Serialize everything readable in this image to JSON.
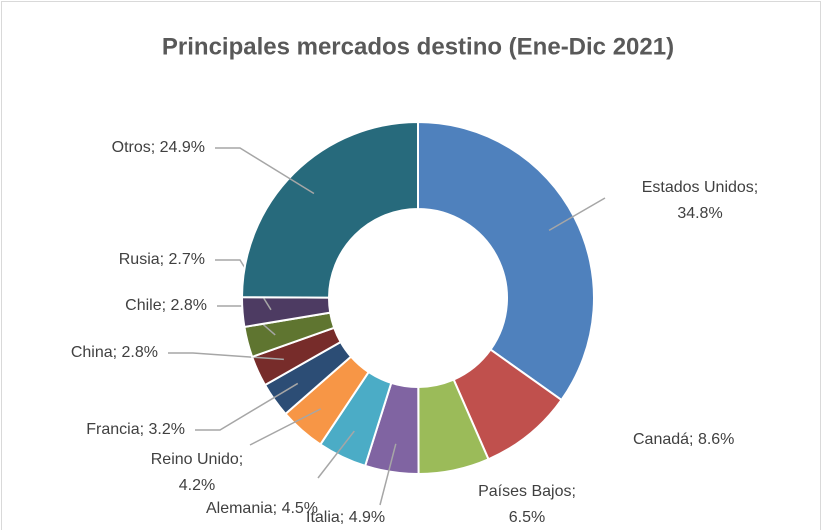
{
  "chart_data": {
    "type": "donut",
    "title": "Principales mercados destino (Ene-Dic 2021)",
    "values": [
      34.8,
      8.6,
      6.5,
      4.9,
      4.5,
      4.2,
      3.2,
      2.8,
      2.8,
      2.7,
      24.9
    ],
    "value_labels": [
      [
        "Estados Unidos;",
        "34.8%"
      ],
      [
        "Canadá; 8.6%"
      ],
      [
        "Países Bajos;",
        "6.5%"
      ],
      [
        "Italia; 4.9%"
      ],
      [
        "Alemania; 4.5%"
      ],
      [
        "Reino Unido;",
        "4.2%"
      ],
      [
        "Francia; 3.2%"
      ],
      [
        "China; 2.8%"
      ],
      [
        "Chile; 2.8%"
      ],
      [
        "Rusia; 2.7%"
      ],
      [
        "Otros; 24.9%"
      ]
    ],
    "colors": [
      "#4f81bd",
      "#c0504d",
      "#9bbb59",
      "#8064a2",
      "#4bacc6",
      "#f79646",
      "#2c4d75",
      "#772c2a",
      "#5f7530",
      "#4d3b62",
      "#276a7c"
    ]
  }
}
